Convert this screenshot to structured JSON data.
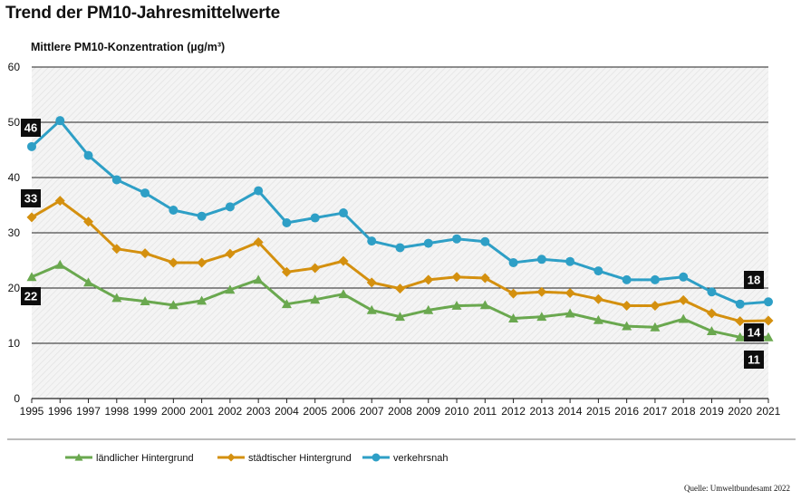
{
  "title": "Trend der PM10-Jahresmittelwerte",
  "source": "Quelle: Umweltbundesamt 2022",
  "chart_data": {
    "type": "line",
    "ylabel": "Mittlere PM10-Konzentration (µg/m³)",
    "ylim": [
      0,
      60
    ],
    "yticks": [
      0,
      10,
      20,
      30,
      40,
      50,
      60
    ],
    "grid": "horizontal",
    "legend_position": "bottom",
    "x": [
      "1995",
      "1996",
      "1997",
      "1998",
      "1999",
      "2000",
      "2001",
      "2002",
      "2003",
      "2004",
      "2005",
      "2006",
      "2007",
      "2008",
      "2009",
      "2010",
      "2011",
      "2012",
      "2013",
      "2014",
      "2015",
      "2016",
      "2017",
      "2018",
      "2019",
      "2020",
      "2021"
    ],
    "series": [
      {
        "name": "ländlicher Hintergrund",
        "color": "#6aa84f",
        "marker": "triangle",
        "values": [
          22,
          24.2,
          21,
          18.2,
          17.6,
          16.9,
          17.7,
          19.7,
          21.5,
          17.1,
          17.9,
          18.9,
          16.0,
          14.8,
          16.0,
          16.8,
          16.9,
          14.5,
          14.8,
          15.4,
          14.2,
          13.1,
          12.9,
          14.4,
          12.2,
          11.1,
          11.1
        ],
        "start_label": "22",
        "end_label": "11"
      },
      {
        "name": "städtischer Hintergrund",
        "color": "#d4900f",
        "marker": "diamond",
        "values": [
          32.8,
          35.8,
          32.0,
          27.1,
          26.3,
          24.6,
          24.6,
          26.2,
          28.3,
          22.9,
          23.6,
          24.9,
          21.0,
          19.9,
          21.5,
          22.0,
          21.8,
          19.0,
          19.3,
          19.1,
          18.0,
          16.8,
          16.8,
          17.8,
          15.4,
          14.0,
          14.1
        ],
        "start_label": "33",
        "end_label": "14"
      },
      {
        "name": "verkehrsnah",
        "color": "#2e9fc6",
        "marker": "circle",
        "values": [
          45.6,
          50.3,
          44.0,
          39.6,
          37.2,
          34.1,
          33.0,
          34.7,
          37.6,
          31.8,
          32.7,
          33.6,
          28.5,
          27.3,
          28.1,
          28.9,
          28.4,
          24.6,
          25.2,
          24.8,
          23.1,
          21.5,
          21.5,
          22.0,
          19.3,
          17.1,
          17.5
        ],
        "start_label": "46",
        "end_label": "18"
      }
    ]
  }
}
